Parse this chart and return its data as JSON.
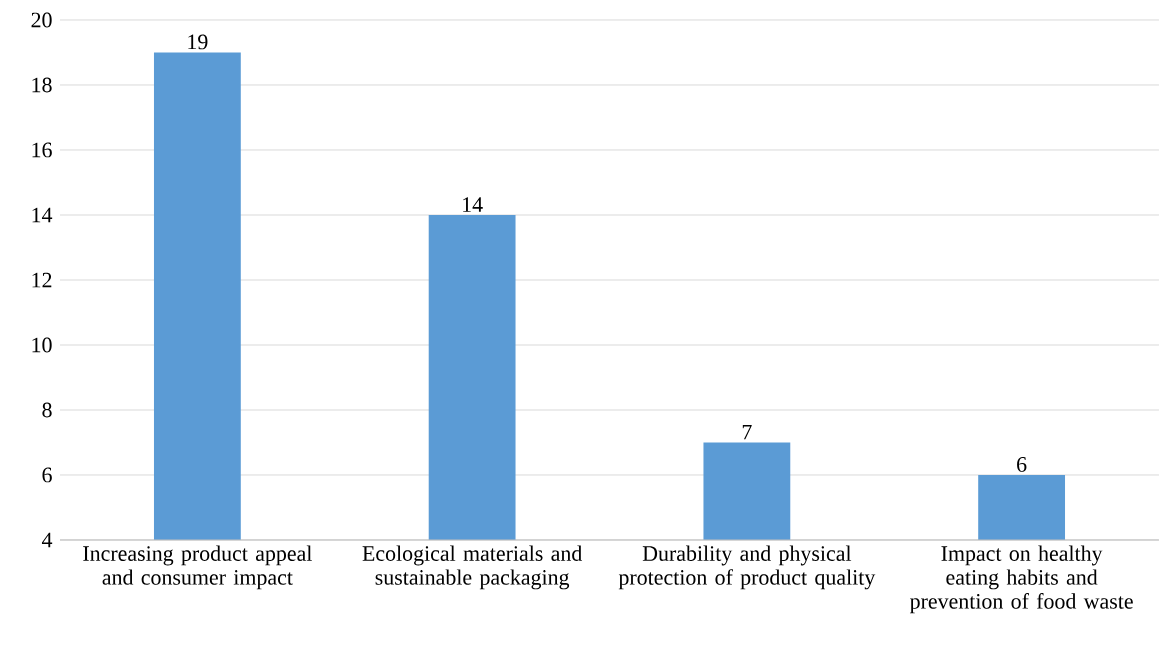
{
  "chart_data": {
    "type": "bar",
    "categories": [
      "Increasing product appeal and consumer impact",
      "Ecological materials and sustainable packaging",
      "Durability and physical protection of product quality",
      "Impact on healthy eating habits and prevention of food waste"
    ],
    "values": [
      19,
      14,
      7,
      6
    ],
    "color": "#5b9bd5",
    "ylim": [
      4,
      20
    ],
    "yticks": [
      4,
      6,
      8,
      10,
      12,
      14,
      16,
      18,
      20
    ],
    "grid": "y",
    "data_labels": true
  }
}
